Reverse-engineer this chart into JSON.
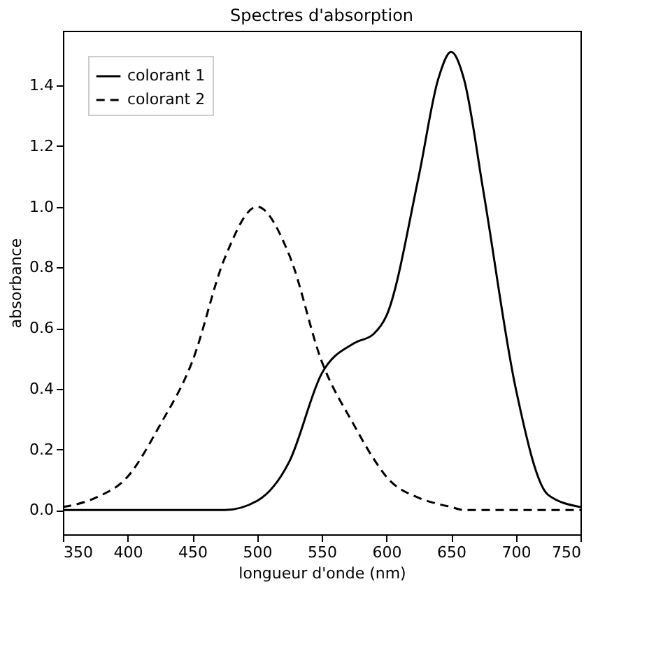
{
  "chart_data": {
    "type": "line",
    "title": "Spectres d'absorption",
    "xlabel": "longueur d'onde (nm)",
    "ylabel": "absorbance",
    "x": [
      350,
      375,
      400,
      425,
      450,
      475,
      500,
      525,
      550,
      575,
      590,
      600,
      625,
      640,
      650,
      660,
      675,
      700,
      725,
      750
    ],
    "series": [
      {
        "name": "colorant 1",
        "color": "#000000",
        "line_style": "solid",
        "values": [
          0.0,
          0.0,
          0.0,
          0.0,
          0.0,
          0.0,
          0.03,
          0.16,
          0.45,
          0.55,
          0.58,
          0.64,
          1.1,
          1.42,
          1.51,
          1.42,
          1.05,
          0.4,
          0.05,
          0.01
        ]
      },
      {
        "name": "colorant 2",
        "color": "#000000",
        "line_style": "dashed",
        "values": [
          0.01,
          0.04,
          0.11,
          0.28,
          0.49,
          0.83,
          1.0,
          0.84,
          0.49,
          0.28,
          0.17,
          0.11,
          0.04,
          0.02,
          0.01,
          0.0,
          0.0,
          0.0,
          0.0,
          0.0
        ]
      }
    ],
    "xlim": [
      350,
      750
    ],
    "xticks": [
      350,
      400,
      450,
      500,
      550,
      600,
      650,
      700,
      750
    ],
    "ylim": [
      -0.08,
      1.58
    ],
    "yticks": [
      {
        "value": 0,
        "label": "0.0"
      },
      0.2,
      0.4,
      0.6,
      0.8,
      {
        "value": 1,
        "label": "1.0"
      },
      1.2,
      1.4
    ],
    "grid": false,
    "legend": "top left",
    "marker": "none"
  }
}
